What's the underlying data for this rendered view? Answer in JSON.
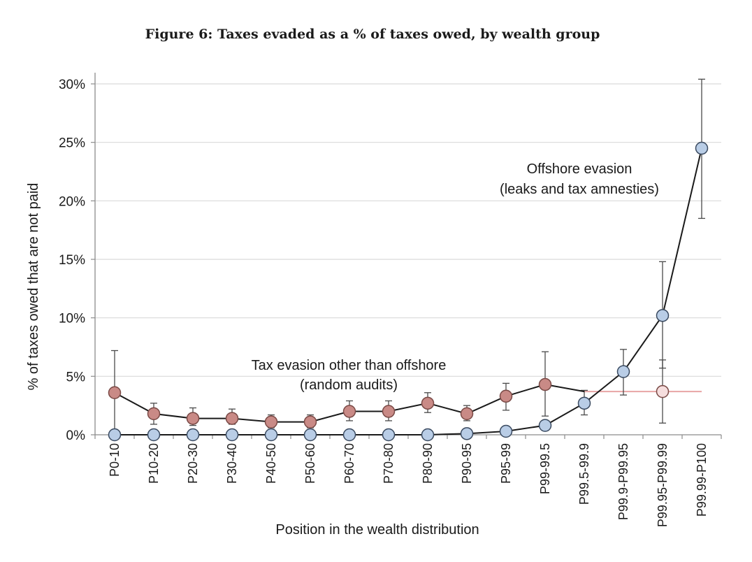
{
  "chart_data": {
    "type": "line",
    "title": "Figure 6: Taxes evaded as a % of taxes owed, by wealth group",
    "xlabel": "Position in the wealth distribution",
    "ylabel": "% of taxes owed that are not paid",
    "ylim": [
      0,
      30
    ],
    "yticks": [
      0,
      5,
      10,
      15,
      20,
      25,
      30
    ],
    "ytick_labels": [
      "0%",
      "5%",
      "10%",
      "15%",
      "20%",
      "25%",
      "30%"
    ],
    "grid": "horizontal",
    "categories": [
      "P0-10",
      "P10-20",
      "P20-30",
      "P30-40",
      "P40-50",
      "P50-60",
      "P60-70",
      "P70-80",
      "P80-90",
      "P90-95",
      "P95-99",
      "P99-99.5",
      "P99.5-99.9",
      "P99.9-P99.95",
      "P99.95-P99.99",
      "P99.99-P100"
    ],
    "series": [
      {
        "name": "Tax evasion other than offshore (random audits)",
        "color": "#c98a86",
        "stroke": "#7a4a46",
        "values": [
          3.6,
          1.8,
          1.4,
          1.4,
          1.1,
          1.1,
          2.0,
          2.0,
          2.7,
          1.8,
          3.3,
          4.3,
          3.7,
          3.7,
          3.7,
          null
        ],
        "markers": [
          true,
          true,
          true,
          true,
          true,
          true,
          true,
          true,
          true,
          true,
          true,
          true,
          false,
          false,
          true,
          false
        ],
        "error_low": [
          0.0,
          0.9,
          0.8,
          0.9,
          0.6,
          0.6,
          1.2,
          1.2,
          1.9,
          1.2,
          2.1,
          1.6,
          null,
          null,
          1.0,
          null
        ],
        "error_high": [
          7.2,
          2.7,
          2.3,
          2.2,
          1.7,
          1.7,
          2.9,
          2.9,
          3.6,
          2.5,
          4.4,
          7.1,
          null,
          null,
          6.4,
          null
        ]
      },
      {
        "name": "Offshore evasion (leaks and tax amnesties)",
        "color": "#b9cde6",
        "stroke": "#3a4a60",
        "values": [
          0,
          0,
          0,
          0,
          0,
          0,
          0,
          0,
          0,
          0.1,
          0.3,
          0.8,
          2.7,
          5.4,
          10.2,
          24.5
        ],
        "error_low": [
          null,
          null,
          null,
          null,
          null,
          null,
          null,
          null,
          null,
          null,
          null,
          null,
          1.7,
          3.4,
          5.7,
          18.5
        ],
        "error_high": [
          null,
          null,
          null,
          null,
          null,
          null,
          null,
          null,
          null,
          null,
          null,
          null,
          3.8,
          7.3,
          14.8,
          30.4
        ]
      }
    ],
    "annotations": [
      {
        "lines": [
          "Offshore evasion",
          "(leaks and tax amnesties)"
        ],
        "series": 1
      },
      {
        "lines": [
          "Tax evasion other than offshore",
          "(random audits)"
        ],
        "series": 0
      }
    ],
    "reference_line": {
      "value": 3.7,
      "color": "#e8a5a5"
    }
  }
}
